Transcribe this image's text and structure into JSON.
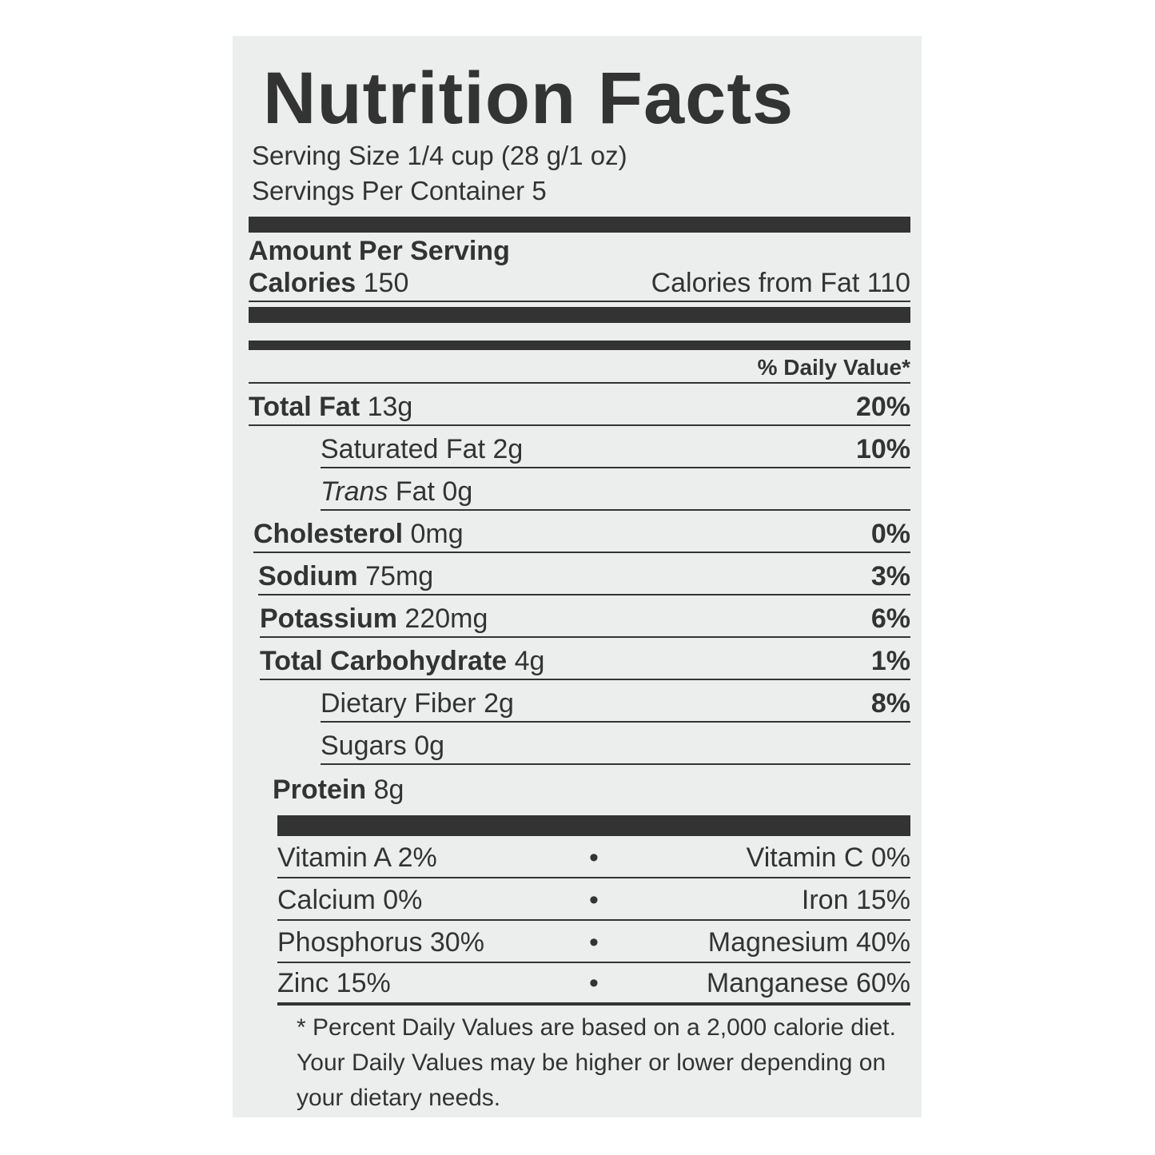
{
  "title": "Nutrition Facts",
  "serving_size": "Serving Size 1/4 cup (28 g/1 oz)",
  "servings_per_container": "Servings Per Container 5",
  "amount_per_serving": "Amount Per Serving",
  "calories": {
    "label": "Calories",
    "value": "150",
    "from_fat_label": "Calories from Fat",
    "from_fat_value": "110"
  },
  "daily_value_header": "% Daily Value*",
  "nutrients": [
    {
      "label": "Total Fat",
      "amount": "13g",
      "dv": "20%"
    },
    {
      "label": "Saturated Fat",
      "amount": "2g",
      "dv": "10%"
    },
    {
      "label": "Trans",
      "label2": "Fat",
      "amount": "0g",
      "dv": ""
    },
    {
      "label": "Cholesterol",
      "amount": "0mg",
      "dv": "0%"
    },
    {
      "label": "Sodium",
      "amount": "75mg",
      "dv": "3%"
    },
    {
      "label": "Potassium",
      "amount": "220mg",
      "dv": "6%"
    },
    {
      "label": "Total Carbohydrate",
      "amount": "4g",
      "dv": "1%"
    },
    {
      "label": "Dietary Fiber",
      "amount": "2g",
      "dv": "8%"
    },
    {
      "label": "Sugars",
      "amount": "0g",
      "dv": ""
    },
    {
      "label": "Protein",
      "amount": "8g",
      "dv": ""
    }
  ],
  "vitamins": [
    {
      "left": "Vitamin A 2%",
      "right": "Vitamin C 0%"
    },
    {
      "left": "Calcium 0%",
      "right": "Iron 15%"
    },
    {
      "left": "Phosphorus 30%",
      "right": "Magnesium 40%"
    },
    {
      "left": "Zinc 15%",
      "right": "Manganese 60%"
    }
  ],
  "bullet": "•",
  "footnote": "* Percent Daily Values are based on a 2,000 calorie diet. Your Daily Values may be higher or lower depending on your dietary needs."
}
